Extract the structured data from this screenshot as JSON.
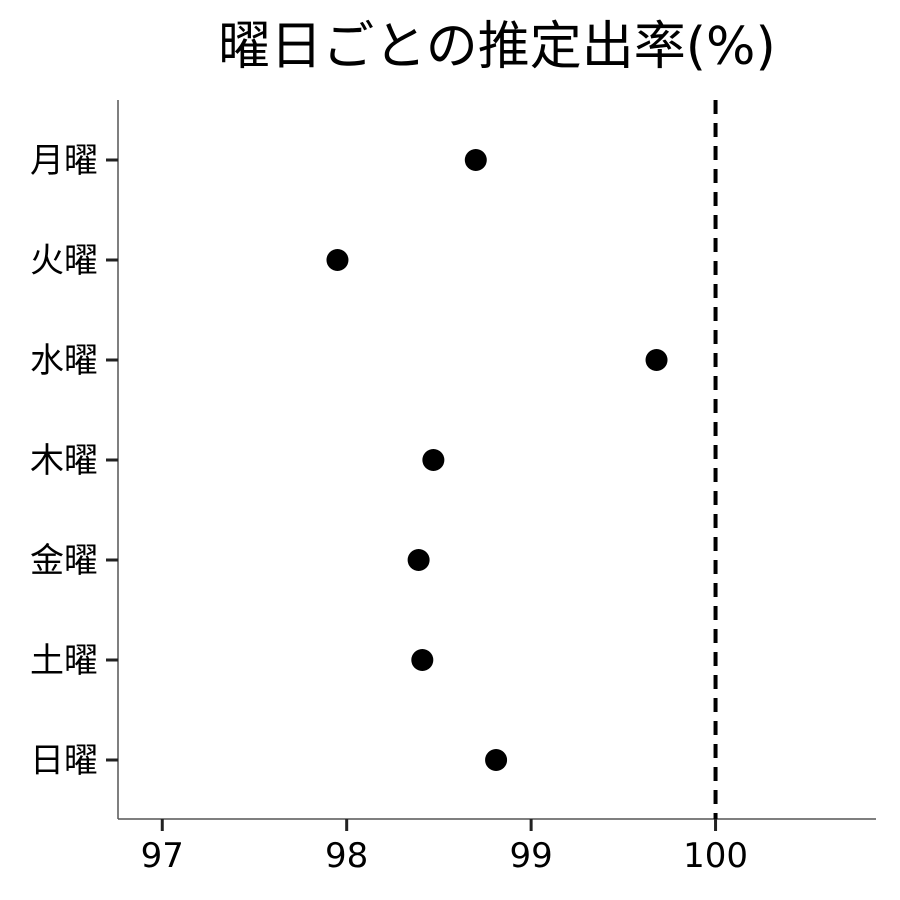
{
  "chart_data": {
    "type": "scatter",
    "title": "曜日ごとの推定出率(%)",
    "xlabel": "",
    "ylabel": "",
    "categories": [
      "月曜",
      "火曜",
      "水曜",
      "木曜",
      "金曜",
      "土曜",
      "日曜"
    ],
    "values": [
      98.7,
      97.95,
      99.68,
      98.47,
      98.39,
      98.41,
      98.81
    ],
    "x_ticks": [
      97,
      98,
      99,
      100
    ],
    "xlim": [
      96.76,
      100.87
    ],
    "reference_line": {
      "x": 100,
      "style": "dashed"
    },
    "grid": false,
    "legend": "none",
    "colors": {
      "point": "#000000",
      "axis": "#555555",
      "reference": "#000000"
    }
  }
}
